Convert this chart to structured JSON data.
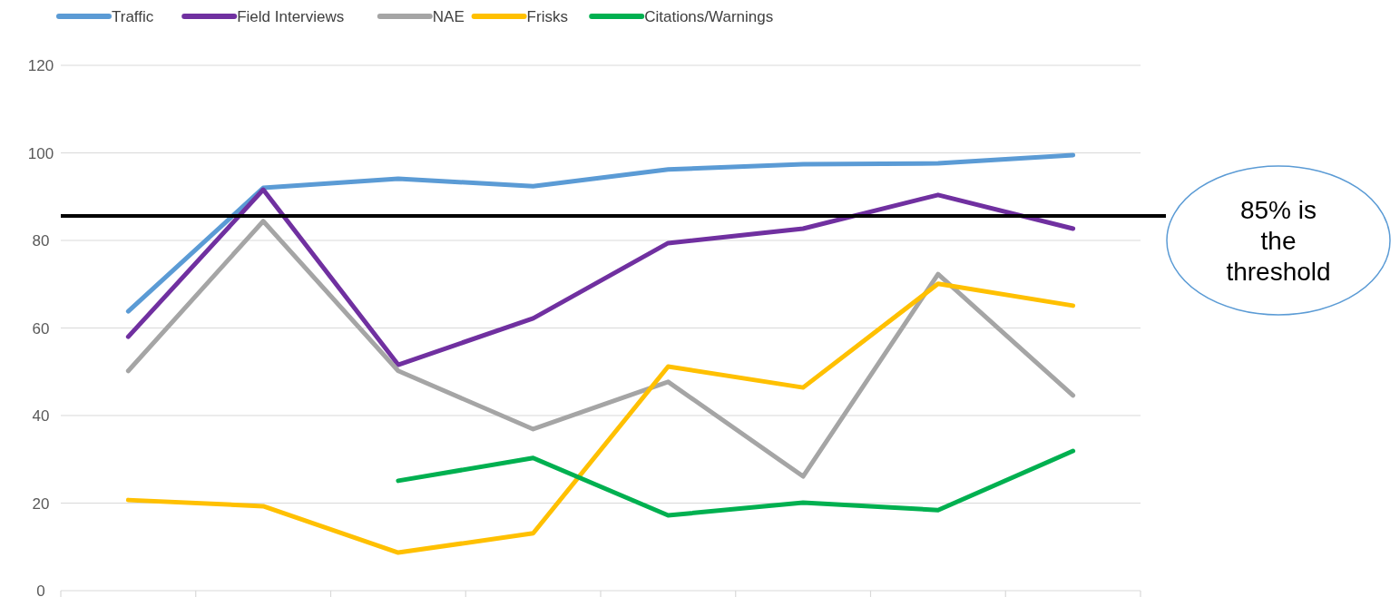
{
  "chart_data": {
    "type": "line",
    "categories": [
      null,
      null,
      null,
      null,
      null,
      null,
      null,
      null
    ],
    "series": [
      {
        "name": "Traffic",
        "color": "#5b9bd5",
        "values": [
          63.8,
          92.0,
          94.1,
          92.4,
          96.2,
          97.4,
          97.6,
          99.5
        ]
      },
      {
        "name": "Field Interviews",
        "color": "#7030a0",
        "values": [
          58.0,
          91.6,
          51.6,
          62.2,
          79.4,
          82.7,
          90.4,
          82.7
        ]
      },
      {
        "name": "NAE",
        "color": "#a5a5a5",
        "values": [
          50.2,
          84.4,
          50.2,
          36.9,
          47.7,
          26.1,
          72.3,
          44.6
        ]
      },
      {
        "name": "Frisks",
        "color": "#ffc000",
        "values": [
          20.7,
          19.3,
          8.7,
          13.1,
          51.2,
          46.4,
          70.1,
          65.1
        ]
      },
      {
        "name": "Citations/Warnings",
        "color": "#00b050",
        "values": [
          null,
          null,
          25.1,
          30.3,
          17.2,
          20.1,
          18.4,
          31.9
        ]
      }
    ],
    "ylim": [
      0,
      120
    ],
    "yticks": [
      0,
      20,
      40,
      60,
      80,
      100,
      120
    ],
    "grid": "y",
    "legend": "top",
    "marker": "none",
    "line_style": "solid",
    "ref_lines": [
      {
        "axis": "y",
        "value": 85.6,
        "label": "85% is the threshold",
        "color": "#000000"
      }
    ]
  }
}
